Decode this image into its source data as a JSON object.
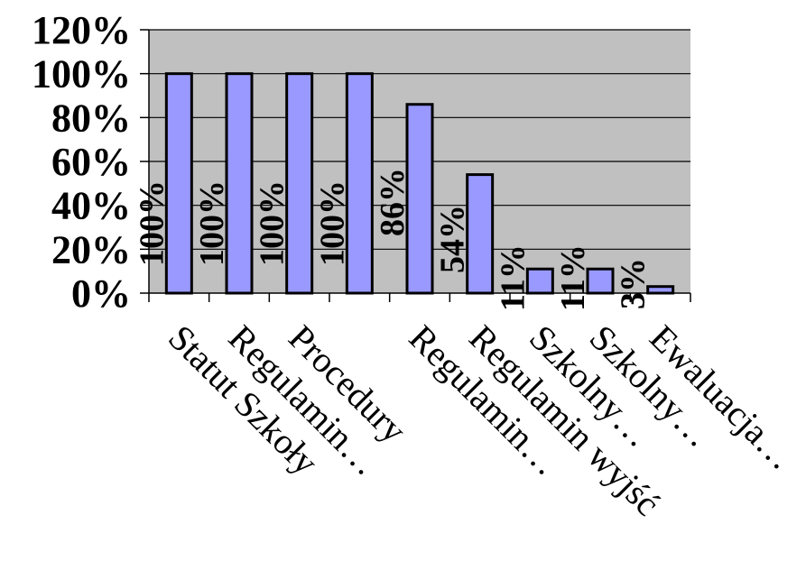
{
  "chart_data": {
    "type": "bar",
    "categories": [
      "Statut Szkoły",
      "Regulamin…",
      "Procedury",
      "",
      "Regulamin…",
      "Regulamin wyjść",
      "Szkolny…",
      "Szkolny…",
      "Ewaluacja…"
    ],
    "values": [
      100,
      100,
      100,
      100,
      86,
      54,
      11,
      11,
      3
    ],
    "data_labels": [
      "100%",
      "100%",
      "100%",
      "100%",
      "86%",
      "54%",
      "11%",
      "11%",
      "3%"
    ],
    "y_ticks": [
      "0%",
      "20%",
      "40%",
      "60%",
      "80%",
      "100%",
      "120%"
    ],
    "ylim": [
      0,
      120
    ],
    "grid": true,
    "legend": "none",
    "colors": {
      "plot_background": "#c0c0c0",
      "bar_fill": "#9999ff",
      "bar_stroke": "#000000",
      "gridline": "#000000"
    }
  }
}
